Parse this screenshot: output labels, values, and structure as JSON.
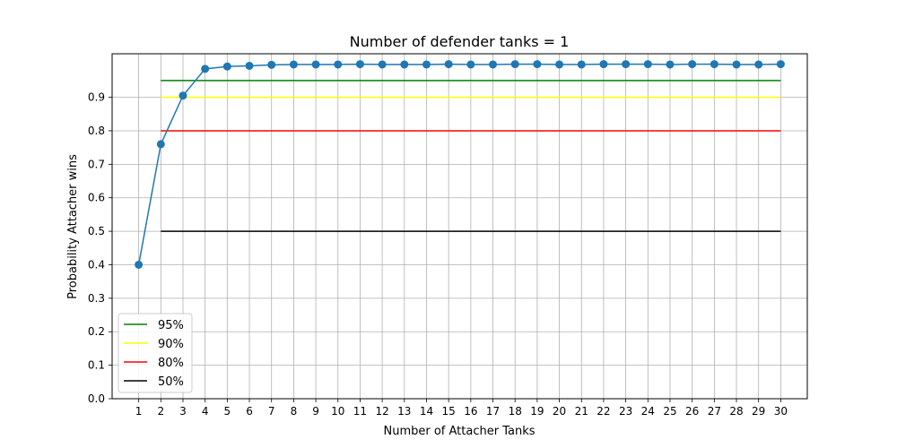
{
  "chart_data": {
    "type": "line",
    "title": "Number of defender tanks = 1",
    "xlabel": "Number of Attacher Tanks",
    "ylabel": "Probability Attacher wins",
    "xlim": [
      -0.2,
      31.2
    ],
    "ylim": [
      0.0,
      1.03
    ],
    "x_ticks": [
      1,
      2,
      3,
      4,
      5,
      6,
      7,
      8,
      9,
      10,
      11,
      12,
      13,
      14,
      15,
      16,
      17,
      18,
      19,
      20,
      21,
      22,
      23,
      24,
      25,
      26,
      27,
      28,
      29,
      30
    ],
    "y_ticks": [
      0.0,
      0.1,
      0.2,
      0.3,
      0.4,
      0.5,
      0.6,
      0.7,
      0.8,
      0.9
    ],
    "y_tick_labels": [
      "0.0",
      "0.1",
      "0.2",
      "0.3",
      "0.4",
      "0.5",
      "0.6",
      "0.7",
      "0.8",
      "0.9"
    ],
    "grid": true,
    "legend_position": "lower-left",
    "main_series": {
      "color": "#1f77b4",
      "x": [
        1,
        2,
        3,
        4,
        5,
        6,
        7,
        8,
        9,
        10,
        11,
        12,
        13,
        14,
        15,
        16,
        17,
        18,
        19,
        20,
        21,
        22,
        23,
        24,
        25,
        26,
        27,
        28,
        29,
        30
      ],
      "y": [
        0.4,
        0.76,
        0.905,
        0.985,
        0.992,
        0.994,
        0.997,
        0.998,
        0.998,
        0.998,
        0.999,
        0.998,
        0.998,
        0.998,
        0.999,
        0.998,
        0.998,
        0.999,
        0.999,
        0.998,
        0.998,
        0.999,
        0.999,
        0.999,
        0.998,
        0.999,
        0.999,
        0.998,
        0.998,
        0.999
      ]
    },
    "thresholds": [
      {
        "name": "95%",
        "value": 0.95,
        "x_start": 2,
        "x_end": 30,
        "color": "#008000"
      },
      {
        "name": "90%",
        "value": 0.9,
        "x_start": 2,
        "x_end": 30,
        "color": "#ffff00"
      },
      {
        "name": "80%",
        "value": 0.8,
        "x_start": 2,
        "x_end": 30,
        "color": "#ff0000"
      },
      {
        "name": "50%",
        "value": 0.5,
        "x_start": 2,
        "x_end": 30,
        "color": "#000000"
      }
    ]
  }
}
